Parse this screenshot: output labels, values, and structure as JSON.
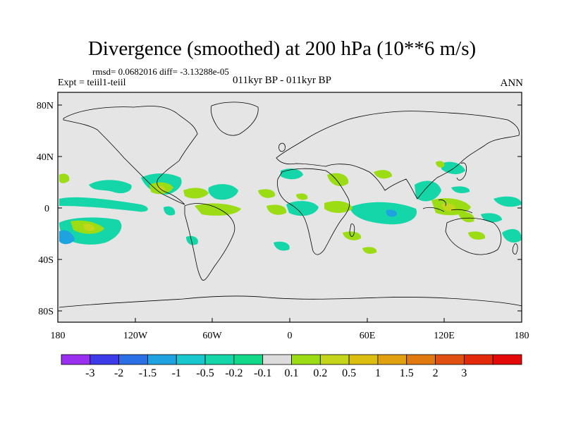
{
  "title": "Divergence (smoothed) at 200 hPa (10**6 m/s)",
  "stats": "rmsd= 0.0682016 diff= -3.13288e-05",
  "experiment": "Expt = teiil1-teiil",
  "period": "011kyr BP - 011kyr BP",
  "season": "ANN",
  "lat_ticks": [
    "80N",
    "40N",
    "0",
    "40S",
    "80S"
  ],
  "lon_ticks": [
    "180",
    "120W",
    "60W",
    "0",
    "60E",
    "120E",
    "180"
  ],
  "colorbar": {
    "colors": [
      "#9b2ff0",
      "#3b3bea",
      "#2b6fe6",
      "#1fa3e0",
      "#19c7cf",
      "#15d6a8",
      "#12d98a",
      "#dcdcdc",
      "#9bdc14",
      "#c5d51a",
      "#dcbe10",
      "#e0a010",
      "#e07a10",
      "#e05010",
      "#e22a0a",
      "#e40808"
    ],
    "labels": [
      "-3",
      "-2",
      "-1.5",
      "-1",
      "-0.5",
      "-0.2",
      "-0.1",
      "0.1",
      "0.2",
      "0.5",
      "1",
      "1.5",
      "2",
      "3"
    ]
  },
  "map_fill": "#e5e5e5"
}
